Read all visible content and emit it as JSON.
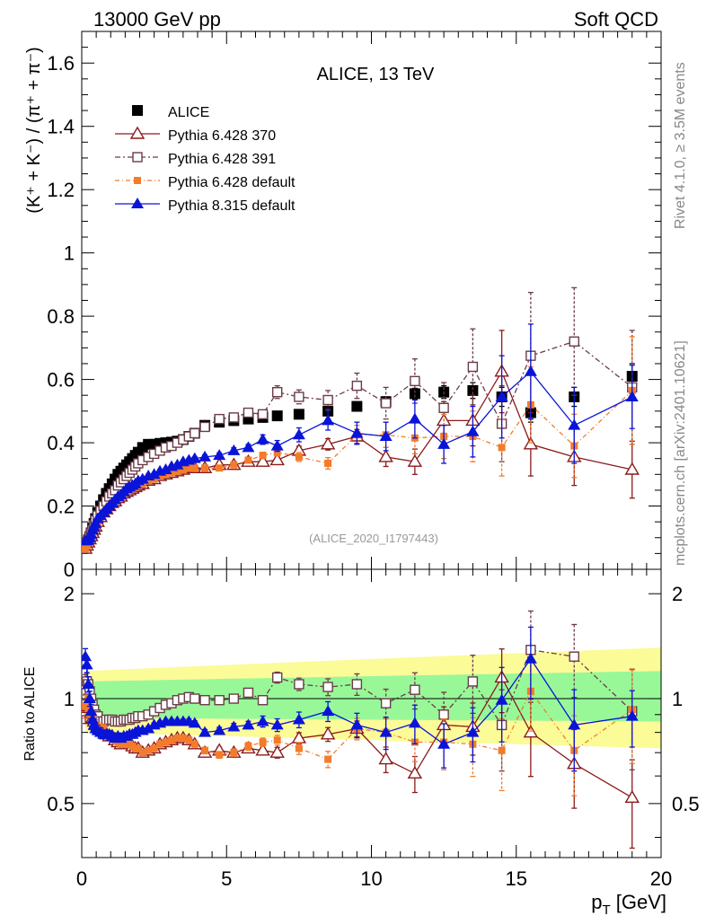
{
  "header": {
    "left": "13000 GeV pp",
    "right": "Soft QCD"
  },
  "side": {
    "rivet": "Rivet 4.1.0, ≥ 3.5M events",
    "mcplots": "mcplots.cern.ch [arXiv:2401.10621]"
  },
  "ylabel_main": "(K⁺ + K⁻) / (π⁺ + π⁻)",
  "ylabel_ratio": "Ratio to ALICE",
  "xlabel": "p",
  "xlabel_sub": "T",
  "xlabel_unit": " [GeV]",
  "analysis_id": "(ALICE_2020_I1797443)",
  "chart_data": {
    "type": "scatter",
    "title": "ALICE, 13 TeV",
    "xlim": [
      0,
      20
    ],
    "ylim_main": [
      0,
      1.7
    ],
    "ylim_ratio": [
      0.35,
      2.35
    ],
    "x_ticks": [
      "0",
      "5",
      "10",
      "15",
      "20"
    ],
    "y_ticks_main": [
      "0",
      "0.2",
      "0.4",
      "0.6",
      "0.8",
      "1",
      "1.2",
      "1.4",
      "1.6"
    ],
    "y_ticks_ratio": [
      "0.5",
      "1",
      "2"
    ],
    "x": [
      0.125,
      0.175,
      0.225,
      0.275,
      0.325,
      0.375,
      0.425,
      0.475,
      0.55,
      0.65,
      0.75,
      0.85,
      0.95,
      1.05,
      1.15,
      1.25,
      1.35,
      1.45,
      1.55,
      1.65,
      1.75,
      1.85,
      1.95,
      2.1,
      2.3,
      2.5,
      2.7,
      2.9,
      3.1,
      3.3,
      3.5,
      3.7,
      3.9,
      4.25,
      4.75,
      5.25,
      5.75,
      6.25,
      6.75,
      7.5,
      8.5,
      9.5,
      10.5,
      11.5,
      12.5,
      13.5,
      14.5,
      15.5,
      17,
      19
    ],
    "series": [
      {
        "name": "ALICE",
        "color": "#000000",
        "marker": "square",
        "dash": "none",
        "values": [
          0.07,
          0.08,
          0.09,
          0.1,
          0.115,
          0.13,
          0.145,
          0.16,
          0.18,
          0.2,
          0.22,
          0.24,
          0.255,
          0.27,
          0.285,
          0.3,
          0.31,
          0.32,
          0.33,
          0.34,
          0.35,
          0.36,
          0.37,
          0.385,
          0.395,
          0.395,
          0.398,
          0.4,
          0.402,
          0.405,
          0.41,
          0.42,
          0.43,
          0.455,
          0.465,
          0.47,
          0.475,
          0.48,
          0.485,
          0.49,
          0.5,
          0.515,
          0.53,
          0.555,
          0.56,
          0.565,
          0.545,
          0.495,
          0.545,
          0.61
        ],
        "ratio": [
          1,
          1,
          1,
          1,
          1,
          1,
          1,
          1,
          1,
          1,
          1,
          1,
          1,
          1,
          1,
          1,
          1,
          1,
          1,
          1,
          1,
          1,
          1,
          1,
          1,
          1,
          1,
          1,
          1,
          1,
          1,
          1,
          1,
          1,
          1,
          1,
          1,
          1,
          1,
          1,
          1,
          1,
          1,
          1,
          1,
          1,
          1,
          1,
          1,
          1
        ],
        "errors": [
          0.005,
          0.005,
          0.005,
          0.005,
          0.005,
          0.005,
          0.005,
          0.005,
          0.005,
          0.005,
          0.005,
          0.005,
          0.005,
          0.005,
          0.005,
          0.005,
          0.005,
          0.005,
          0.005,
          0.005,
          0.005,
          0.005,
          0.005,
          0.005,
          0.005,
          0.005,
          0.005,
          0.005,
          0.005,
          0.005,
          0.005,
          0.005,
          0.006,
          0.006,
          0.006,
          0.007,
          0.008,
          0.009,
          0.01,
          0.01,
          0.012,
          0.013,
          0.015,
          0.017,
          0.02,
          0.025,
          0.03,
          0.03,
          0.03,
          0.04
        ]
      },
      {
        "name": "Pythia 6.428 370",
        "color": "#8b1a1a",
        "marker": "triangle-open",
        "dash": "none",
        "values": [
          0.065,
          0.075,
          0.085,
          0.095,
          0.105,
          0.115,
          0.125,
          0.135,
          0.15,
          0.165,
          0.18,
          0.19,
          0.2,
          0.21,
          0.215,
          0.225,
          0.23,
          0.24,
          0.245,
          0.25,
          0.255,
          0.26,
          0.265,
          0.27,
          0.28,
          0.285,
          0.295,
          0.3,
          0.305,
          0.31,
          0.315,
          0.32,
          0.32,
          0.32,
          0.33,
          0.33,
          0.34,
          0.34,
          0.345,
          0.375,
          0.395,
          0.42,
          0.355,
          0.34,
          0.47,
          0.47,
          0.625,
          0.395,
          0.355,
          0.315
        ],
        "ratio": [
          0.92,
          0.94,
          0.95,
          0.95,
          0.91,
          0.88,
          0.86,
          0.84,
          0.83,
          0.82,
          0.82,
          0.79,
          0.78,
          0.78,
          0.76,
          0.75,
          0.74,
          0.75,
          0.74,
          0.74,
          0.73,
          0.72,
          0.72,
          0.7,
          0.71,
          0.72,
          0.74,
          0.75,
          0.76,
          0.77,
          0.77,
          0.76,
          0.74,
          0.7,
          0.71,
          0.7,
          0.72,
          0.71,
          0.7,
          0.77,
          0.79,
          0.82,
          0.67,
          0.61,
          0.84,
          0.83,
          1.15,
          0.8,
          0.65,
          0.52
        ],
        "errors": [
          0.005,
          0.005,
          0.005,
          0.005,
          0.005,
          0.005,
          0.005,
          0.005,
          0.005,
          0.005,
          0.005,
          0.005,
          0.005,
          0.005,
          0.005,
          0.005,
          0.005,
          0.005,
          0.005,
          0.005,
          0.005,
          0.005,
          0.005,
          0.005,
          0.005,
          0.005,
          0.005,
          0.005,
          0.005,
          0.005,
          0.005,
          0.005,
          0.006,
          0.007,
          0.007,
          0.008,
          0.009,
          0.01,
          0.012,
          0.014,
          0.018,
          0.022,
          0.03,
          0.04,
          0.06,
          0.08,
          0.13,
          0.1,
          0.09,
          0.09
        ]
      },
      {
        "name": "Pythia 6.428 391",
        "color": "#6b3c48",
        "marker": "square-open",
        "dash": "6,3,2,3",
        "values": [
          0.075,
          0.085,
          0.095,
          0.105,
          0.115,
          0.125,
          0.14,
          0.155,
          0.17,
          0.185,
          0.2,
          0.215,
          0.23,
          0.24,
          0.25,
          0.265,
          0.275,
          0.285,
          0.295,
          0.305,
          0.315,
          0.325,
          0.335,
          0.345,
          0.355,
          0.365,
          0.375,
          0.385,
          0.39,
          0.4,
          0.41,
          0.42,
          0.43,
          0.45,
          0.475,
          0.48,
          0.495,
          0.49,
          0.56,
          0.545,
          0.535,
          0.58,
          0.525,
          0.595,
          0.51,
          0.64,
          0.46,
          0.675,
          0.72,
          0.575
        ],
        "ratio": [
          1.1,
          1.12,
          1.1,
          1.05,
          1.0,
          0.96,
          0.93,
          0.9,
          0.89,
          0.86,
          0.86,
          0.87,
          0.87,
          0.87,
          0.86,
          0.86,
          0.86,
          0.87,
          0.87,
          0.87,
          0.88,
          0.88,
          0.89,
          0.89,
          0.9,
          0.92,
          0.94,
          0.96,
          0.97,
          0.99,
          1.0,
          1.01,
          1.0,
          0.99,
          0.99,
          1.0,
          1.04,
          0.99,
          1.15,
          1.1,
          1.08,
          1.1,
          0.97,
          1.06,
          0.9,
          1.12,
          0.84,
          1.38,
          1.32,
          0.92
        ],
        "errors": [
          0.005,
          0.005,
          0.005,
          0.005,
          0.005,
          0.005,
          0.005,
          0.005,
          0.005,
          0.005,
          0.005,
          0.005,
          0.005,
          0.005,
          0.005,
          0.005,
          0.005,
          0.005,
          0.005,
          0.005,
          0.005,
          0.005,
          0.005,
          0.005,
          0.005,
          0.005,
          0.005,
          0.005,
          0.005,
          0.005,
          0.005,
          0.006,
          0.006,
          0.007,
          0.008,
          0.009,
          0.01,
          0.012,
          0.02,
          0.022,
          0.03,
          0.04,
          0.05,
          0.07,
          0.08,
          0.12,
          0.12,
          0.2,
          0.17,
          0.18
        ]
      },
      {
        "name": "Pythia 6.428 default",
        "color": "#f37b2a",
        "marker": "square-filled-small",
        "dash": "5,3,1,3",
        "values": [
          0.065,
          0.075,
          0.085,
          0.095,
          0.105,
          0.115,
          0.125,
          0.135,
          0.15,
          0.165,
          0.18,
          0.19,
          0.2,
          0.21,
          0.215,
          0.225,
          0.23,
          0.24,
          0.245,
          0.25,
          0.255,
          0.26,
          0.265,
          0.27,
          0.28,
          0.285,
          0.295,
          0.3,
          0.305,
          0.31,
          0.315,
          0.32,
          0.32,
          0.32,
          0.32,
          0.33,
          0.345,
          0.36,
          0.37,
          0.355,
          0.335,
          0.425,
          0.425,
          0.415,
          0.42,
          0.42,
          0.385,
          0.52,
          0.39,
          0.565
        ],
        "ratio": [
          0.95,
          0.96,
          0.95,
          0.94,
          0.9,
          0.88,
          0.85,
          0.84,
          0.83,
          0.82,
          0.82,
          0.79,
          0.78,
          0.78,
          0.76,
          0.75,
          0.74,
          0.75,
          0.74,
          0.74,
          0.73,
          0.72,
          0.72,
          0.7,
          0.71,
          0.72,
          0.74,
          0.75,
          0.76,
          0.77,
          0.77,
          0.76,
          0.74,
          0.71,
          0.69,
          0.7,
          0.73,
          0.75,
          0.76,
          0.72,
          0.67,
          0.82,
          0.8,
          0.75,
          0.75,
          0.74,
          0.71,
          1.05,
          0.71,
          0.93
        ],
        "errors": [
          0.005,
          0.005,
          0.005,
          0.005,
          0.005,
          0.005,
          0.005,
          0.005,
          0.005,
          0.005,
          0.005,
          0.005,
          0.005,
          0.005,
          0.005,
          0.005,
          0.005,
          0.005,
          0.005,
          0.005,
          0.005,
          0.005,
          0.005,
          0.005,
          0.005,
          0.005,
          0.005,
          0.005,
          0.005,
          0.005,
          0.005,
          0.005,
          0.006,
          0.007,
          0.007,
          0.008,
          0.009,
          0.01,
          0.012,
          0.014,
          0.018,
          0.03,
          0.04,
          0.05,
          0.07,
          0.08,
          0.09,
          0.12,
          0.1,
          0.17
        ]
      },
      {
        "name": "Pythia 8.315 default",
        "color": "#0a14d8",
        "marker": "triangle-filled",
        "dash": "none",
        "values": [
          0.09,
          0.09,
          0.095,
          0.1,
          0.11,
          0.125,
          0.135,
          0.145,
          0.16,
          0.17,
          0.18,
          0.19,
          0.2,
          0.21,
          0.22,
          0.23,
          0.235,
          0.245,
          0.255,
          0.26,
          0.265,
          0.27,
          0.28,
          0.285,
          0.295,
          0.3,
          0.31,
          0.315,
          0.325,
          0.33,
          0.34,
          0.345,
          0.35,
          0.355,
          0.36,
          0.375,
          0.385,
          0.41,
          0.39,
          0.425,
          0.47,
          0.43,
          0.42,
          0.475,
          0.395,
          0.435,
          0.545,
          0.625,
          0.455,
          0.545
        ],
        "ratio": [
          1.32,
          1.25,
          1.1,
          1.0,
          0.92,
          0.87,
          0.84,
          0.82,
          0.81,
          0.8,
          0.79,
          0.79,
          0.79,
          0.78,
          0.77,
          0.78,
          0.77,
          0.78,
          0.78,
          0.79,
          0.79,
          0.8,
          0.81,
          0.81,
          0.82,
          0.84,
          0.85,
          0.86,
          0.86,
          0.86,
          0.86,
          0.86,
          0.85,
          0.8,
          0.81,
          0.83,
          0.84,
          0.86,
          0.84,
          0.87,
          0.92,
          0.84,
          0.8,
          0.85,
          0.74,
          0.8,
          0.99,
          1.3,
          0.84,
          0.89
        ],
        "errors": [
          0.005,
          0.005,
          0.005,
          0.005,
          0.005,
          0.005,
          0.005,
          0.005,
          0.005,
          0.005,
          0.005,
          0.005,
          0.005,
          0.005,
          0.005,
          0.005,
          0.005,
          0.005,
          0.005,
          0.005,
          0.005,
          0.005,
          0.005,
          0.005,
          0.005,
          0.005,
          0.005,
          0.005,
          0.005,
          0.005,
          0.005,
          0.006,
          0.006,
          0.007,
          0.008,
          0.009,
          0.01,
          0.015,
          0.017,
          0.022,
          0.03,
          0.035,
          0.045,
          0.06,
          0.06,
          0.08,
          0.13,
          0.15,
          0.12,
          0.1
        ]
      }
    ],
    "bands": {
      "green": {
        "x": [
          0.125,
          20
        ],
        "lo": [
          0.88,
          0.86
        ],
        "hi": [
          1.12,
          1.2
        ]
      },
      "yellow": {
        "x": [
          0.125,
          20
        ],
        "lo": [
          0.8,
          0.72
        ],
        "hi": [
          1.2,
          1.4
        ]
      }
    },
    "legend": {
      "position": "top-left"
    }
  }
}
